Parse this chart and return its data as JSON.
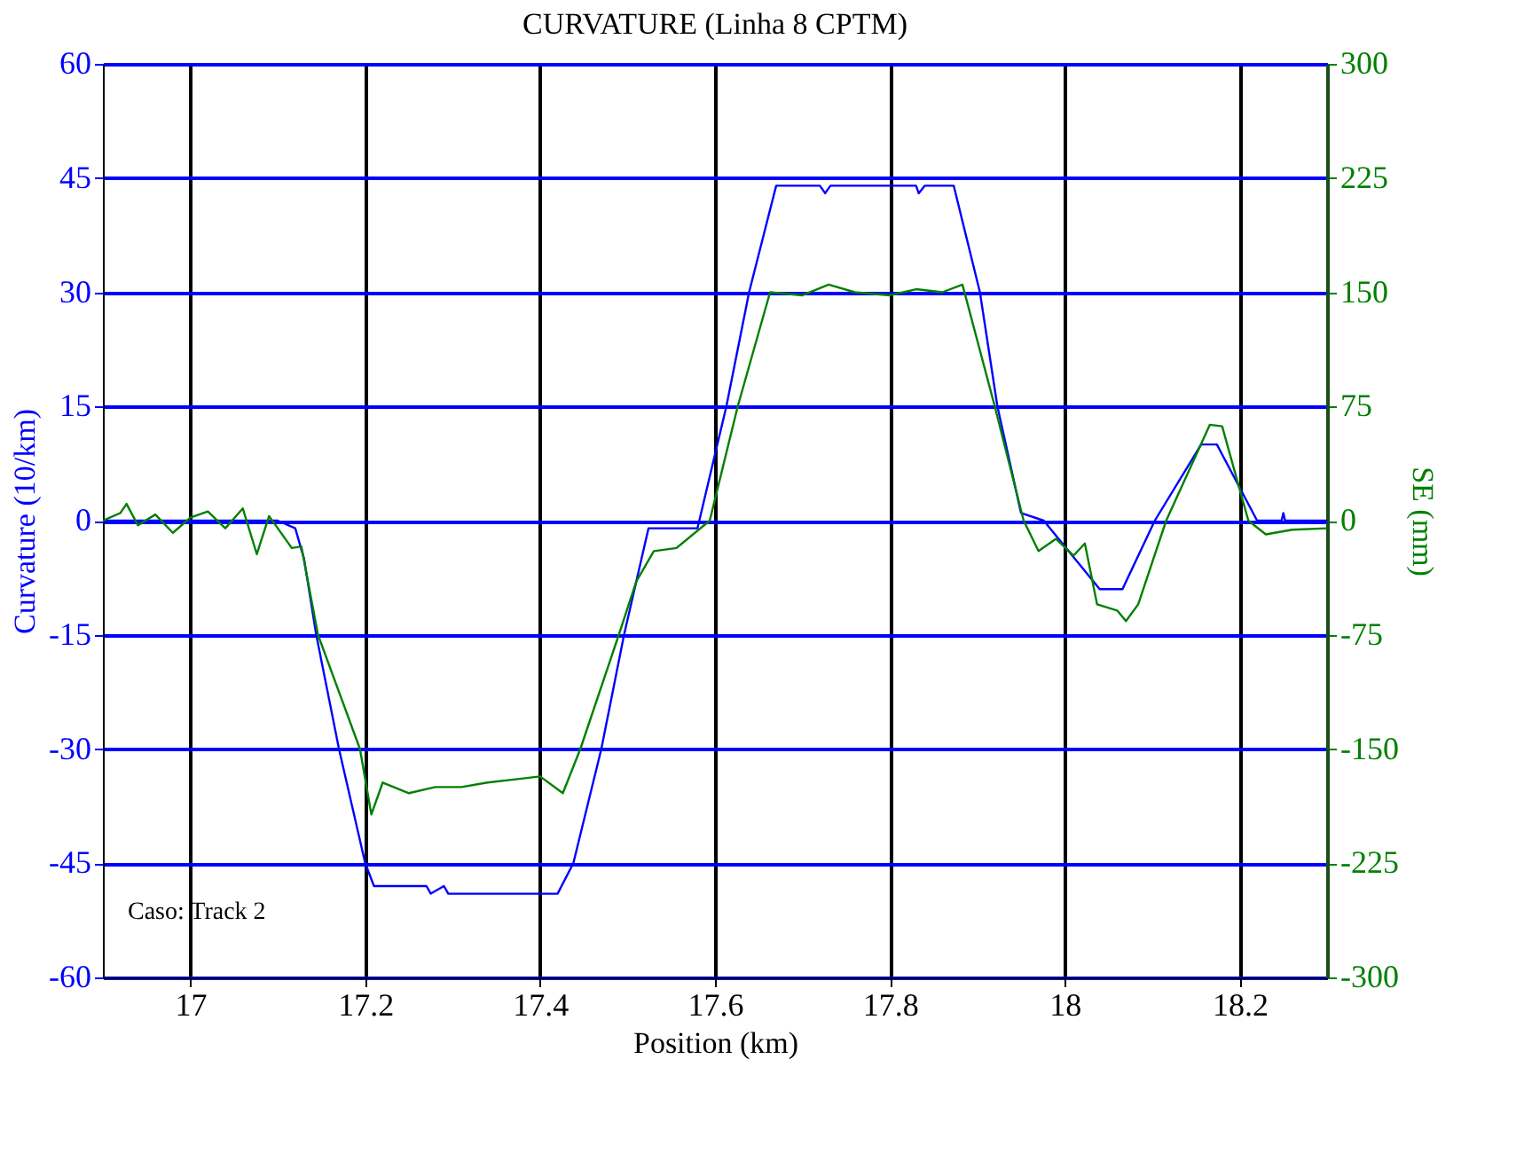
{
  "chart_data": {
    "type": "line",
    "title": "CURVATURE (Linha 8 CPTM)",
    "xlabel": "Position (km)",
    "ylabel": "Curvature (10/km)",
    "y2label": "SE (mm)",
    "xlim": [
      16.9,
      18.3
    ],
    "xticks": [
      17,
      17.2,
      17.4,
      17.6,
      17.8,
      18,
      18.2
    ],
    "ylim": [
      -60,
      60
    ],
    "yticks": [
      -60,
      -45,
      -30,
      -15,
      0,
      15,
      30,
      45,
      60
    ],
    "y2lim": [
      -300,
      300
    ],
    "y2ticks": [
      -300,
      -225,
      -150,
      -75,
      0,
      75,
      150,
      225,
      300
    ],
    "grid": true,
    "annotations": [
      "Caso: Track 2"
    ],
    "series": [
      {
        "color": "#0000ff",
        "x": [
          16.9,
          17.0,
          17.1,
          17.12,
          17.13,
          17.144,
          17.17,
          17.2,
          17.21,
          17.27,
          17.275,
          17.29,
          17.295,
          17.38,
          17.42,
          17.438,
          17.47,
          17.496,
          17.524,
          17.58,
          17.613,
          17.639,
          17.67,
          17.72,
          17.726,
          17.732,
          17.83,
          17.833,
          17.84,
          17.873,
          17.903,
          17.923,
          17.95,
          17.976,
          18.04,
          18.066,
          18.103,
          18.156,
          18.174,
          18.22,
          18.248,
          18.25,
          18.252,
          18.3
        ],
        "values": [
          0,
          0,
          0,
          -1,
          -5,
          -15,
          -30,
          -45,
          -48,
          -48,
          -49,
          -48,
          -49,
          -49,
          -49,
          -45,
          -30,
          -15,
          -1,
          -1,
          15,
          30,
          44,
          44,
          43,
          44,
          44,
          43,
          44,
          44,
          30,
          15,
          1,
          0,
          -9,
          -9,
          0,
          10,
          10,
          0,
          0,
          1,
          0,
          0
        ]
      },
      {
        "color": "#008000",
        "axis": "y2",
        "x": [
          16.9,
          16.92,
          16.927,
          16.94,
          16.96,
          16.98,
          17.0,
          17.02,
          17.04,
          17.06,
          17.076,
          17.09,
          17.1,
          17.116,
          17.127,
          17.146,
          17.194,
          17.207,
          17.22,
          17.25,
          17.28,
          17.31,
          17.34,
          17.37,
          17.4,
          17.426,
          17.446,
          17.49,
          17.51,
          17.53,
          17.556,
          17.594,
          17.626,
          17.663,
          17.7,
          17.73,
          17.76,
          17.8,
          17.83,
          17.86,
          17.883,
          17.92,
          17.953,
          17.97,
          17.99,
          18.01,
          18.023,
          18.037,
          18.06,
          18.07,
          18.084,
          18.116,
          18.166,
          18.18,
          18.21,
          18.23,
          18.26,
          18.3
        ],
        "values": [
          0,
          5,
          11,
          -3,
          4,
          -8,
          2,
          6,
          -5,
          8,
          -22,
          3,
          -5,
          -18,
          -17,
          -75,
          -150,
          -193,
          -172,
          -179,
          -175,
          -175,
          -172,
          -170,
          -168,
          -179,
          -150,
          -75,
          -40,
          -20,
          -18,
          0,
          75,
          150,
          148,
          155,
          150,
          148,
          152,
          150,
          155,
          75,
          0,
          -20,
          -12,
          -23,
          -15,
          -55,
          -59,
          -66,
          -55,
          0,
          63,
          62,
          0,
          -9,
          -6,
          -5
        ]
      }
    ]
  }
}
